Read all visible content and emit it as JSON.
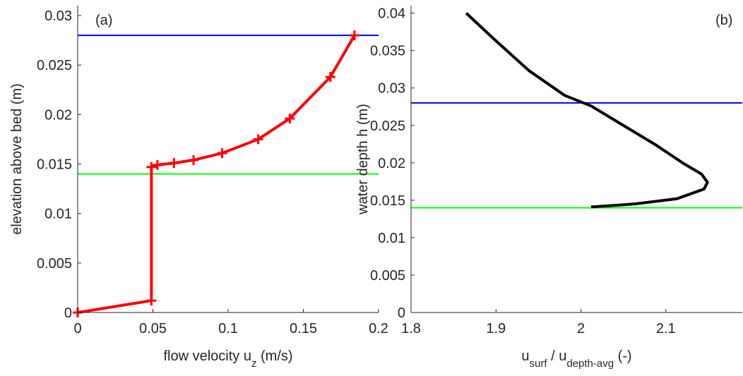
{
  "chart_data": [
    {
      "type": "line",
      "label": "(a)",
      "xlabel": [
        {
          "text": "flow velocity u"
        },
        {
          "text": "z",
          "sub": true
        },
        {
          "text": " (m/s)"
        }
      ],
      "ylabel": "elevation above bed (m)",
      "x": [
        0,
        0.049,
        0.049,
        0.053,
        0.064,
        0.077,
        0.096,
        0.12,
        0.141,
        0.168,
        0.184
      ],
      "series": [
        {
          "color": "#ff0000",
          "marker": "+",
          "values": [
            0,
            0.0012,
            0.0147,
            0.0149,
            0.0151,
            0.0154,
            0.0161,
            0.0175,
            0.0196,
            0.0238,
            0.028
          ]
        }
      ],
      "hlines": [
        {
          "value": 0.028,
          "color": "#0000ff"
        },
        {
          "value": 0.014,
          "color": "#00ff00"
        }
      ],
      "xlim": [
        0,
        0.2
      ],
      "xticks": [
        0,
        0.05,
        0.1,
        0.15,
        0.2
      ],
      "ylim": [
        0,
        0.031
      ],
      "yticks": [
        0,
        0.005,
        0.01,
        0.015,
        0.02,
        0.025,
        0.03
      ]
    },
    {
      "type": "line",
      "label": "(b)",
      "xlabel": [
        {
          "text": "u"
        },
        {
          "text": "surf",
          "sub": true
        },
        {
          "text": " / u"
        },
        {
          "text": "depth-avg",
          "sub": true
        },
        {
          "text": " (-)"
        }
      ],
      "ylabel": "water depth h (m)",
      "x": [
        1.865,
        1.898,
        1.939,
        1.981,
        2.012,
        2.047,
        2.088,
        2.121,
        2.142,
        2.149,
        2.145,
        2.113,
        2.063,
        2.012
      ],
      "series": [
        {
          "color": "#000000",
          "values": [
            0.04,
            0.0365,
            0.0323,
            0.029,
            0.0276,
            0.0252,
            0.0224,
            0.0199,
            0.0185,
            0.0174,
            0.0165,
            0.0152,
            0.0145,
            0.0141
          ]
        }
      ],
      "hlines": [
        {
          "value": 0.028,
          "color": "#0000ff"
        },
        {
          "value": 0.014,
          "color": "#00ff00"
        }
      ],
      "xlim": [
        1.8,
        2.19
      ],
      "xticks": [
        1.8,
        1.9,
        2,
        2.1
      ],
      "ylim": [
        0,
        0.041
      ],
      "yticks": [
        0,
        0.005,
        0.01,
        0.015,
        0.02,
        0.025,
        0.03,
        0.035,
        0.04
      ]
    }
  ]
}
